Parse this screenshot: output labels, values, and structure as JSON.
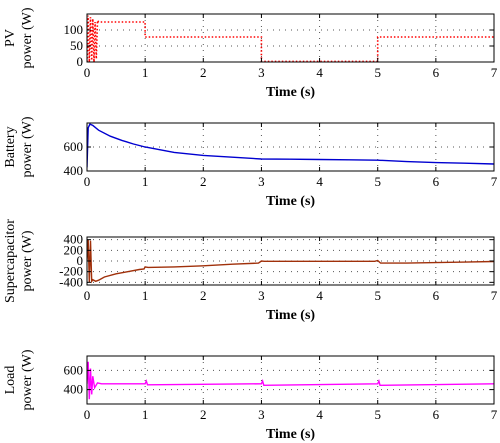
{
  "chart_data": [
    {
      "type": "line",
      "ylabel_lines": [
        "PV",
        "power (W)"
      ],
      "xlabel": "Time (s)",
      "xlim": [
        0,
        7
      ],
      "ylim": [
        0,
        150
      ],
      "xticks": [
        0,
        1,
        2,
        3,
        4,
        5,
        6,
        7
      ],
      "yticks": [
        0,
        50,
        100
      ],
      "grid": true,
      "series": [
        {
          "color": "#ff0000",
          "style": "dotted",
          "x": [
            0,
            0.02,
            0.04,
            0.06,
            0.08,
            0.1,
            0.12,
            0.14,
            0.16,
            0.18,
            0.2,
            0.21,
            1.0,
            1.0,
            3.0,
            3.0,
            5.0,
            5.0,
            7.0
          ],
          "y": [
            0,
            145,
            0,
            140,
            5,
            135,
            0,
            125,
            10,
            130,
            125,
            125,
            125,
            78,
            78,
            2,
            2,
            78,
            78
          ]
        }
      ]
    },
    {
      "type": "line",
      "ylabel_lines": [
        "Battery",
        "power (W)"
      ],
      "xlabel": "Time (s)",
      "xlim": [
        0,
        7
      ],
      "ylim": [
        400,
        800
      ],
      "xticks": [
        0,
        1,
        2,
        3,
        4,
        5,
        6,
        7
      ],
      "yticks": [
        400,
        600
      ],
      "grid": true,
      "series": [
        {
          "color": "#0000d0",
          "style": "solid",
          "x": [
            0,
            0.02,
            0.05,
            0.1,
            0.2,
            0.4,
            0.6,
            0.8,
            1.0,
            1.5,
            2.0,
            2.5,
            3.0,
            3.5,
            4.0,
            4.5,
            5.0,
            5.5,
            6.0,
            6.5,
            7.0
          ],
          "y": [
            430,
            760,
            790,
            780,
            740,
            690,
            655,
            625,
            600,
            555,
            530,
            515,
            500,
            498,
            496,
            493,
            490,
            478,
            470,
            465,
            458
          ]
        }
      ]
    },
    {
      "type": "line",
      "ylabel_lines": [
        "Supercapacitor",
        "power (W)"
      ],
      "xlabel": "Time (s)",
      "xlim": [
        0,
        7
      ],
      "ylim": [
        -450,
        450
      ],
      "xticks": [
        0,
        1,
        2,
        3,
        4,
        5,
        6,
        7
      ],
      "yticks": [
        -400,
        -200,
        0,
        200,
        400
      ],
      "grid": true,
      "series": [
        {
          "color": "#a0300a",
          "style": "solid",
          "x": [
            0,
            0.02,
            0.04,
            0.06,
            0.08,
            0.1,
            0.15,
            0.2,
            0.3,
            0.5,
            0.7,
            0.9,
            0.98,
            1.0,
            1.05,
            1.5,
            2.0,
            2.5,
            2.95,
            3.0,
            3.05,
            3.5,
            4.0,
            4.5,
            4.95,
            5.0,
            5.05,
            5.5,
            6.0,
            6.5,
            7.0
          ],
          "y": [
            0,
            400,
            -400,
            380,
            -380,
            -350,
            -380,
            -360,
            -300,
            -240,
            -200,
            -160,
            -150,
            -110,
            -120,
            -110,
            -90,
            -60,
            -40,
            0,
            -5,
            -5,
            -5,
            -5,
            -5,
            10,
            -40,
            -40,
            -30,
            -20,
            -10
          ]
        }
      ]
    },
    {
      "type": "line",
      "ylabel_lines": [
        "Load",
        "power (W)"
      ],
      "xlabel": "Time (s)",
      "xlim": [
        0,
        7
      ],
      "ylim": [
        250,
        750
      ],
      "xticks": [
        0,
        1,
        2,
        3,
        4,
        5,
        6,
        7
      ],
      "yticks": [
        400,
        600
      ],
      "grid": true,
      "series": [
        {
          "color": "#ff00ff",
          "style": "solid",
          "x": [
            0,
            0.02,
            0.04,
            0.06,
            0.08,
            0.1,
            0.13,
            0.18,
            0.25,
            1.0,
            1.02,
            1.04,
            3.0,
            3.02,
            3.04,
            5.0,
            5.02,
            5.04,
            7.0
          ],
          "y": [
            460,
            690,
            300,
            620,
            350,
            540,
            420,
            470,
            460,
            460,
            490,
            450,
            460,
            490,
            445,
            460,
            490,
            445,
            460
          ]
        }
      ]
    }
  ]
}
